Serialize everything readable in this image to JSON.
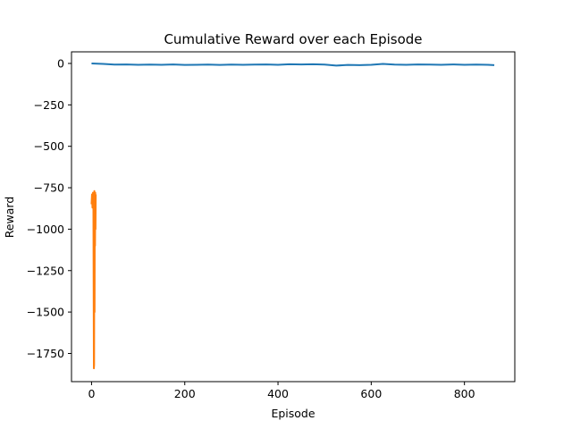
{
  "chart_data": {
    "type": "line",
    "title": "Cumulative Reward over each Episode",
    "xlabel": "Episode",
    "ylabel": "Reward",
    "xlim": [
      -43,
      908
    ],
    "ylim": [
      -1920,
      70
    ],
    "xticks": [
      0,
      200,
      400,
      600,
      800
    ],
    "yticks": [
      0,
      -250,
      -500,
      -750,
      -1000,
      -1250,
      -1500,
      -1750
    ],
    "ytick_labels": [
      "0",
      "−250",
      "−500",
      "−750",
      "−1000",
      "−1250",
      "−1500",
      "−1750"
    ],
    "grid": false,
    "series": [
      {
        "color": "#1f77b4",
        "x": [
          0,
          25,
          50,
          75,
          100,
          125,
          150,
          175,
          200,
          225,
          250,
          275,
          300,
          325,
          350,
          375,
          400,
          425,
          450,
          475,
          500,
          525,
          550,
          575,
          600,
          625,
          650,
          675,
          700,
          725,
          750,
          775,
          800,
          825,
          850,
          864
        ],
        "values": [
          0,
          -3,
          -7,
          -6,
          -8,
          -7,
          -8,
          -6,
          -9,
          -8,
          -7,
          -9,
          -7,
          -8,
          -7,
          -6,
          -8,
          -5,
          -6,
          -5,
          -7,
          -13,
          -9,
          -10,
          -8,
          -3,
          -7,
          -8,
          -6,
          -7,
          -8,
          -6,
          -8,
          -7,
          -8,
          -10
        ]
      },
      {
        "color": "#ff7f0e",
        "x": [
          0,
          1,
          2,
          3,
          4,
          5,
          5.5,
          6,
          6.5,
          7,
          7.5,
          8,
          8.5,
          9
        ],
        "values": [
          -850,
          -790,
          -870,
          -780,
          -880,
          -1840,
          -1820,
          -770,
          -1500,
          -790,
          -1100,
          -780,
          -1000,
          -790
        ]
      }
    ]
  }
}
